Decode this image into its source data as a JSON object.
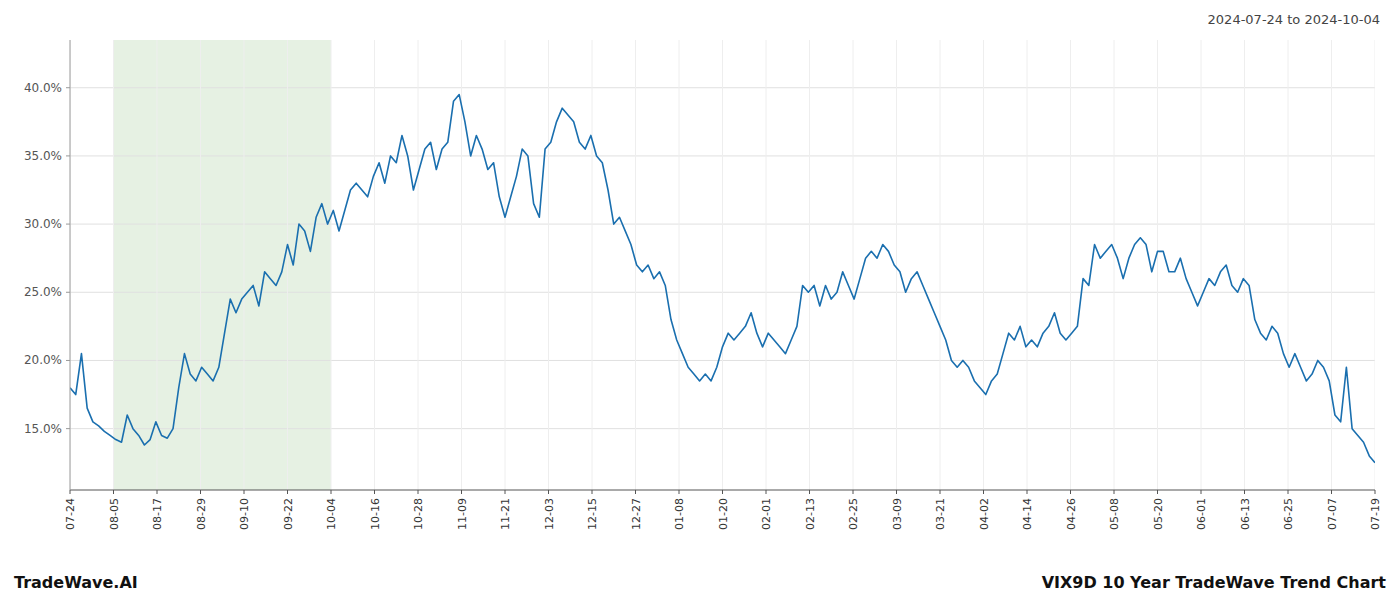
{
  "chart_data": {
    "type": "line",
    "title": "VIX9D 10 Year TradeWave Trend Chart",
    "subtitle": "2024-07-24 to 2024-10-04",
    "annotations": [
      "TradeWave.AI"
    ],
    "color": "#1a6faf",
    "grid": true,
    "shade": {
      "from": "08-05",
      "to": "10-04",
      "color": "#d6e8d0"
    },
    "xlim": [
      0,
      228
    ],
    "xticks": [
      {
        "value": 0,
        "label": "07-24"
      },
      {
        "value": 7.6,
        "label": "08-05"
      },
      {
        "value": 15.2,
        "label": "08-17"
      },
      {
        "value": 22.8,
        "label": "08-29"
      },
      {
        "value": 30.4,
        "label": "09-10"
      },
      {
        "value": 38,
        "label": "09-22"
      },
      {
        "value": 45.6,
        "label": "10-04"
      },
      {
        "value": 53.2,
        "label": "10-16"
      },
      {
        "value": 60.8,
        "label": "10-28"
      },
      {
        "value": 68.4,
        "label": "11-09"
      },
      {
        "value": 76,
        "label": "11-21"
      },
      {
        "value": 83.6,
        "label": "12-03"
      },
      {
        "value": 91.2,
        "label": "12-15"
      },
      {
        "value": 98.8,
        "label": "12-27"
      },
      {
        "value": 106.4,
        "label": "01-08"
      },
      {
        "value": 114,
        "label": "01-20"
      },
      {
        "value": 121.6,
        "label": "02-01"
      },
      {
        "value": 129.2,
        "label": "02-13"
      },
      {
        "value": 136.8,
        "label": "02-25"
      },
      {
        "value": 144.4,
        "label": "03-09"
      },
      {
        "value": 152,
        "label": "03-21"
      },
      {
        "value": 159.6,
        "label": "04-02"
      },
      {
        "value": 167.2,
        "label": "04-14"
      },
      {
        "value": 174.8,
        "label": "04-26"
      },
      {
        "value": 182.4,
        "label": "05-08"
      },
      {
        "value": 190,
        "label": "05-20"
      },
      {
        "value": 197.6,
        "label": "06-01"
      },
      {
        "value": 205.2,
        "label": "06-13"
      },
      {
        "value": 212.8,
        "label": "06-25"
      },
      {
        "value": 220.4,
        "label": "07-07"
      },
      {
        "value": 228,
        "label": "07-19"
      }
    ],
    "ylim": [
      10.5,
      43.5
    ],
    "yticks": [
      {
        "value": 15.0,
        "label": "15.0%"
      },
      {
        "value": 20.0,
        "label": "20.0%"
      },
      {
        "value": 25.0,
        "label": "25.0%"
      },
      {
        "value": 30.0,
        "label": "30.0%"
      },
      {
        "value": 35.0,
        "label": "35.0%"
      },
      {
        "value": 40.0,
        "label": "40.0%"
      }
    ],
    "x": [
      0,
      1,
      2,
      3,
      4,
      5,
      6,
      7,
      8,
      9,
      10,
      11,
      12,
      13,
      14,
      15,
      16,
      17,
      18,
      19,
      20,
      21,
      22,
      23,
      24,
      25,
      26,
      27,
      28,
      29,
      30,
      31,
      32,
      33,
      34,
      35,
      36,
      37,
      38,
      39,
      40,
      41,
      42,
      43,
      44,
      45,
      46,
      47,
      48,
      49,
      50,
      51,
      52,
      53,
      54,
      55,
      56,
      57,
      58,
      59,
      60,
      61,
      62,
      63,
      64,
      65,
      66,
      67,
      68,
      69,
      70,
      71,
      72,
      73,
      74,
      75,
      76,
      77,
      78,
      79,
      80,
      81,
      82,
      83,
      84,
      85,
      86,
      87,
      88,
      89,
      90,
      91,
      92,
      93,
      94,
      95,
      96,
      97,
      98,
      99,
      100,
      101,
      102,
      103,
      104,
      105,
      106,
      107,
      108,
      109,
      110,
      111,
      112,
      113,
      114,
      115,
      116,
      117,
      118,
      119,
      120,
      121,
      122,
      123,
      124,
      125,
      126,
      127,
      128,
      129,
      130,
      131,
      132,
      133,
      134,
      135,
      136,
      137,
      138,
      139,
      140,
      141,
      142,
      143,
      144,
      145,
      146,
      147,
      148,
      149,
      150,
      151,
      152,
      153,
      154,
      155,
      156,
      157,
      158,
      159,
      160,
      161,
      162,
      163,
      164,
      165,
      166,
      167,
      168,
      169,
      170,
      171,
      172,
      173,
      174,
      175,
      176,
      177,
      178,
      179,
      180,
      181,
      182,
      183,
      184,
      185,
      186,
      187,
      188,
      189,
      190,
      191,
      192,
      193,
      194,
      195,
      196,
      197,
      198,
      199,
      200,
      201,
      202,
      203,
      204,
      205,
      206,
      207,
      208,
      209,
      210,
      211,
      212,
      213,
      214,
      215,
      216,
      217,
      218,
      219,
      220,
      221,
      222,
      223,
      224,
      225,
      226,
      227,
      228
    ],
    "values": [
      18.0,
      17.5,
      20.5,
      16.5,
      15.5,
      15.2,
      14.8,
      14.5,
      14.2,
      14.0,
      16.0,
      15.0,
      14.5,
      13.8,
      14.2,
      15.5,
      14.5,
      14.3,
      15.0,
      18.0,
      20.5,
      19.0,
      18.5,
      19.5,
      19.0,
      18.5,
      19.5,
      22.0,
      24.5,
      23.5,
      24.5,
      25.0,
      25.5,
      24.0,
      26.5,
      26.0,
      25.5,
      26.5,
      28.5,
      27.0,
      30.0,
      29.5,
      28.0,
      30.5,
      31.5,
      30.0,
      31.0,
      29.5,
      31.0,
      32.5,
      33.0,
      32.5,
      32.0,
      33.5,
      34.5,
      33.0,
      35.0,
      34.5,
      36.5,
      35.0,
      32.5,
      34.0,
      35.5,
      36.0,
      34.0,
      35.5,
      36.0,
      39.0,
      39.5,
      37.5,
      35.0,
      36.5,
      35.5,
      34.0,
      34.5,
      32.0,
      30.5,
      32.0,
      33.5,
      35.5,
      35.0,
      31.5,
      30.5,
      35.5,
      36.0,
      37.5,
      38.5,
      38.0,
      37.5,
      36.0,
      35.5,
      36.5,
      35.0,
      34.5,
      32.5,
      30.0,
      30.5,
      29.5,
      28.5,
      27.0,
      26.5,
      27.0,
      26.0,
      26.5,
      25.5,
      23.0,
      21.5,
      20.5,
      19.5,
      19.0,
      18.5,
      19.0,
      18.5,
      19.5,
      21.0,
      22.0,
      21.5,
      22.0,
      22.5,
      23.5,
      22.0,
      21.0,
      22.0,
      21.5,
      21.0,
      20.5,
      21.5,
      22.5,
      25.5,
      25.0,
      25.5,
      24.0,
      25.5,
      24.5,
      25.0,
      26.5,
      25.5,
      24.5,
      26.0,
      27.5,
      28.0,
      27.5,
      28.5,
      28.0,
      27.0,
      26.5,
      25.0,
      26.0,
      26.5,
      25.5,
      24.5,
      23.5,
      22.5,
      21.5,
      20.0,
      19.5,
      20.0,
      19.5,
      18.5,
      18.0,
      17.5,
      18.5,
      19.0,
      20.5,
      22.0,
      21.5,
      22.5,
      21.0,
      21.5,
      21.0,
      22.0,
      22.5,
      23.5,
      22.0,
      21.5,
      22.0,
      22.5,
      26.0,
      25.5,
      28.5,
      27.5,
      28.0,
      28.5,
      27.5,
      26.0,
      27.5,
      28.5,
      29.0,
      28.5,
      26.5,
      28.0,
      28.0,
      26.5,
      26.5,
      27.5,
      26.0,
      25.0,
      24.0,
      25.0,
      26.0,
      25.5,
      26.5,
      27.0,
      25.5,
      25.0,
      26.0,
      25.5,
      23.0,
      22.0,
      21.5,
      22.5,
      22.0,
      20.5,
      19.5,
      20.5,
      19.5,
      18.5,
      19.0,
      20.0,
      19.5,
      18.5,
      16.0,
      15.5,
      19.5,
      15.0,
      14.5,
      14.0,
      13.0,
      12.5
    ]
  }
}
